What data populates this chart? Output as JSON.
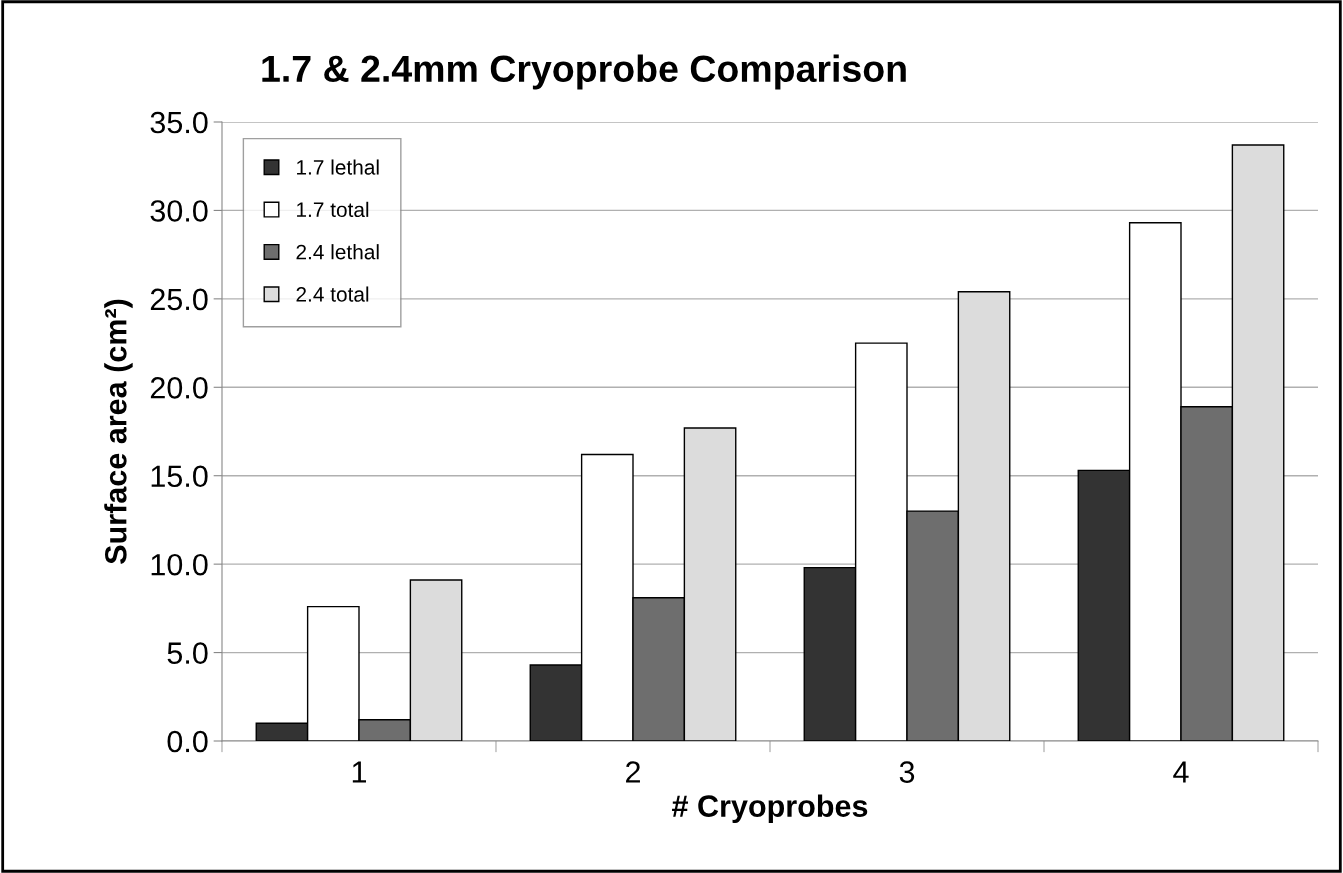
{
  "chart_data": {
    "type": "bar",
    "title": "1.7 & 2.4mm Cryoprobe Comparison",
    "xlabel": "# Cryoprobes",
    "ylabel": "Surface area (cm²)",
    "categories": [
      "1",
      "2",
      "3",
      "4"
    ],
    "series": [
      {
        "name": "1.7 lethal",
        "color": "#333333",
        "values": [
          1.0,
          4.3,
          9.8,
          15.3
        ]
      },
      {
        "name": "1.7 total",
        "color": "#ffffff",
        "values": [
          7.6,
          16.2,
          22.5,
          29.3
        ]
      },
      {
        "name": "2.4 lethal",
        "color": "#6e6e6e",
        "values": [
          1.2,
          8.1,
          13.0,
          18.9
        ]
      },
      {
        "name": "2.4 total",
        "color": "#dcdcdc",
        "values": [
          9.1,
          17.7,
          25.4,
          33.7
        ]
      }
    ],
    "ylim": [
      0,
      35
    ],
    "yticks": [
      {
        "value": 0,
        "label": "0.0"
      },
      {
        "value": 5,
        "label": "5.0"
      },
      {
        "value": 10,
        "label": "10.0"
      },
      {
        "value": 15,
        "label": "15.0"
      },
      {
        "value": 20,
        "label": "20.0"
      },
      {
        "value": 25,
        "label": "25.0"
      },
      {
        "value": 30,
        "label": "30.0"
      },
      {
        "value": 35,
        "label": "35.0"
      }
    ],
    "grid": "y",
    "legend": "top left"
  }
}
